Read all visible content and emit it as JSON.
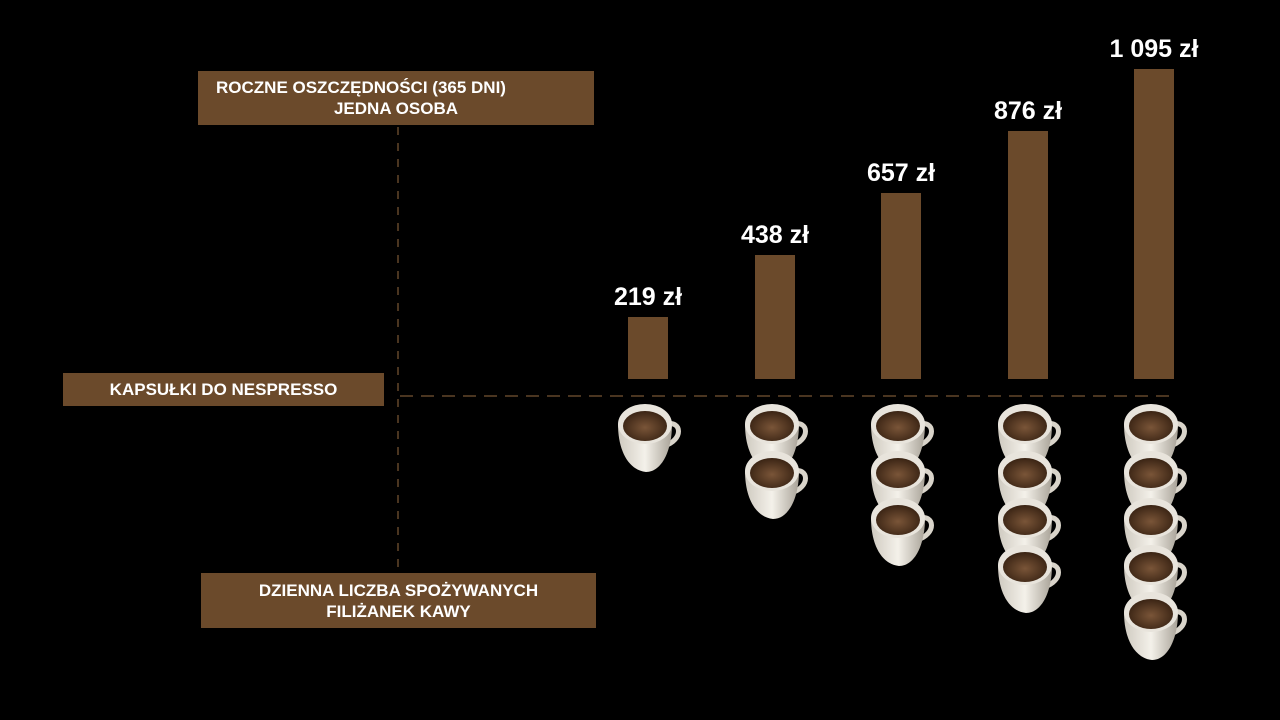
{
  "chart_data": {
    "type": "bar",
    "y_title_lines": [
      "ROCZNE OSZCZĘDNOŚCI (365 DNI)",
      "JEDNA OSOBA"
    ],
    "series_label": "KAPSUŁKI DO NESPRESSO",
    "x_title_lines": [
      "DZIENNA LICZBA SPOŻYWANYCH",
      "FILIŻANEK KAWY"
    ],
    "categories": [
      1,
      2,
      3,
      4,
      5
    ],
    "values": [
      219,
      438,
      657,
      876,
      1095
    ],
    "data_labels": [
      "219 zł",
      "438 zł",
      "657 zł",
      "876 zł",
      "1 095 zł"
    ],
    "unit": "zł",
    "ylim": [
      0,
      1095
    ],
    "grid": false,
    "x_category_icon": "coffee-cup-icon"
  },
  "colors": {
    "background": "#000000",
    "bar": "#6b4a2b",
    "axis_dash": "#4a3520",
    "text": "#ffffff"
  }
}
